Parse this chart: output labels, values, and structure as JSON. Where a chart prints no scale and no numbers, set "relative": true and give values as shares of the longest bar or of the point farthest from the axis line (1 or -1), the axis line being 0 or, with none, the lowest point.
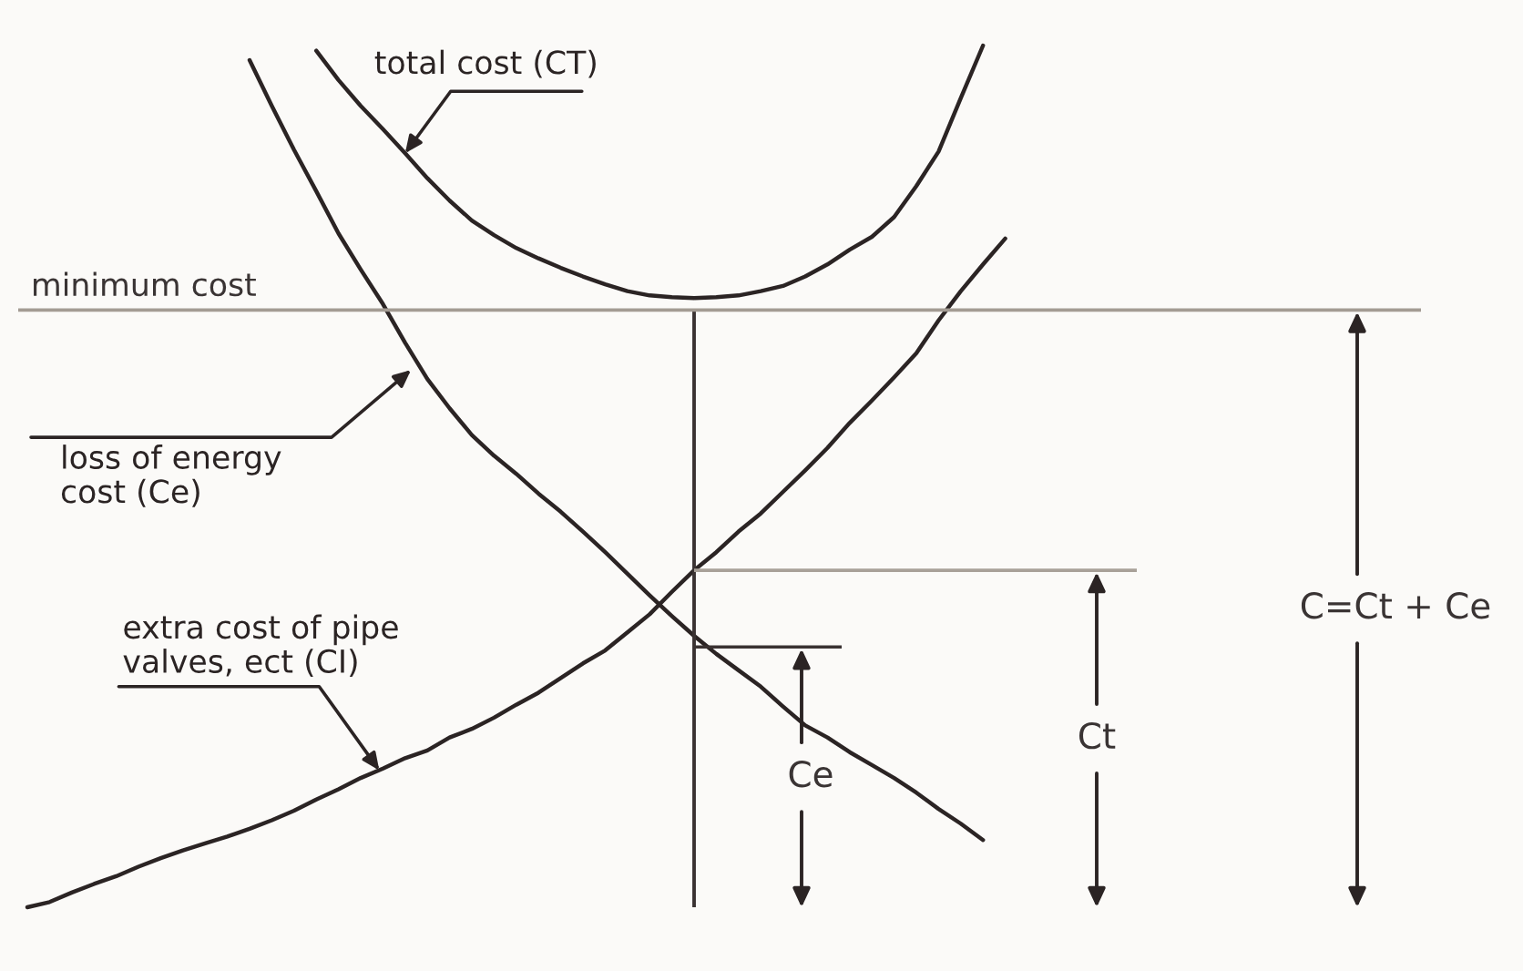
{
  "chart_data": {
    "type": "line",
    "relative": true,
    "categories": [
      null,
      null,
      null,
      null,
      null,
      null,
      null,
      null,
      null,
      null,
      null,
      null,
      null,
      null,
      null,
      null,
      null,
      null,
      null,
      null,
      null,
      null,
      null,
      null,
      null,
      null,
      null,
      null,
      null,
      null,
      null,
      null,
      null,
      null,
      null,
      null,
      null,
      null,
      null,
      null,
      null,
      null,
      null,
      null,
      null
    ],
    "series": [
      {
        "name": "total cost (CT)",
        "color": "#2b2424",
        "values": [
          null,
          null,
          null,
          null,
          null,
          null,
          null,
          null,
          null,
          null,
          null,
          null,
          null,
          0.994,
          0.96,
          0.93,
          0.903,
          0.875,
          0.846,
          0.82,
          0.797,
          0.78,
          0.765,
          0.753,
          0.742,
          0.732,
          0.723,
          0.715,
          0.71,
          0.708,
          0.707,
          0.708,
          0.71,
          0.715,
          0.721,
          0.732,
          0.746,
          0.763,
          0.778,
          0.801,
          0.837,
          0.877,
          0.939,
          1.0,
          null
        ]
      },
      {
        "name": "loss of energy\ncost (Ce)",
        "color": "#2b2424",
        "values": [
          null,
          null,
          null,
          null,
          null,
          null,
          null,
          null,
          null,
          null,
          0.983,
          0.93,
          0.879,
          0.831,
          0.782,
          0.74,
          0.7,
          0.655,
          0.613,
          0.579,
          0.548,
          0.524,
          0.503,
          0.48,
          0.459,
          0.436,
          0.412,
          0.387,
          0.362,
          0.338,
          0.315,
          0.294,
          0.275,
          0.256,
          0.233,
          0.211,
          0.197,
          0.18,
          0.165,
          0.15,
          0.133,
          0.114,
          0.097,
          0.078,
          null
        ]
      },
      {
        "name": "extra cost of pipe\nvalves, ect (CI)",
        "color": "#2b2424",
        "values": [
          0.0,
          0.006,
          0.017,
          0.027,
          0.036,
          0.047,
          0.057,
          0.066,
          0.074,
          0.082,
          0.091,
          0.101,
          0.112,
          0.125,
          0.137,
          0.15,
          0.161,
          0.173,
          0.182,
          0.197,
          0.207,
          0.22,
          0.235,
          0.249,
          0.266,
          0.283,
          0.298,
          0.319,
          0.34,
          0.366,
          0.391,
          0.412,
          0.436,
          0.457,
          0.482,
          0.507,
          0.533,
          0.562,
          0.588,
          0.615,
          0.643,
          0.681,
          0.715,
          0.746,
          0.776
        ]
      }
    ],
    "ref_lines": [
      {
        "axis": "y",
        "value": 0.302,
        "color": "#3a3232"
      },
      {
        "axis": "y",
        "value": 0.391,
        "color": "#a8a098"
      },
      {
        "axis": "y",
        "value": 0.693,
        "label": "minimum cost",
        "color": "#a39b93"
      }
    ],
    "annotations": [
      "Ce",
      "Ct",
      "C=Ct + Ce"
    ]
  }
}
